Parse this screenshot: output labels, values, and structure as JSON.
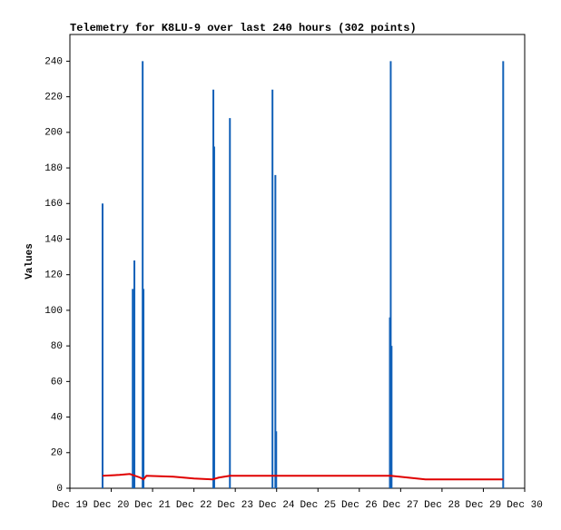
{
  "chart_data": {
    "type": "mixed",
    "title": "Telemetry for K8LU-9 over last 240 hours (302 points)",
    "y_label": "Values",
    "xlim": [
      19,
      30
    ],
    "xticks": [
      {
        "value": 19,
        "label": "Dec 19"
      },
      {
        "value": 20,
        "label": "Dec 20"
      },
      {
        "value": 21,
        "label": "Dec 21"
      },
      {
        "value": 22,
        "label": "Dec 22"
      },
      {
        "value": 23,
        "label": "Dec 23"
      },
      {
        "value": 24,
        "label": "Dec 24"
      },
      {
        "value": 25,
        "label": "Dec 25"
      },
      {
        "value": 26,
        "label": "Dec 26"
      },
      {
        "value": 27,
        "label": "Dec 27"
      },
      {
        "value": 28,
        "label": "Dec 28"
      },
      {
        "value": 29,
        "label": "Dec 29"
      },
      {
        "value": 30,
        "label": "Dec 30"
      }
    ],
    "ylim": [
      0,
      255
    ],
    "yticks": [
      0,
      20,
      40,
      60,
      80,
      100,
      120,
      140,
      160,
      180,
      200,
      220,
      240
    ],
    "series": [
      {
        "type": "impulse",
        "color": "#1060b8",
        "x": [
          19.79,
          20.52,
          20.54,
          20.56,
          20.76,
          20.78,
          22.47,
          22.49,
          22.87,
          23.9,
          23.97,
          23.99,
          26.74,
          26.76,
          26.78,
          29.48
        ],
        "values": [
          160,
          112,
          16,
          128,
          240,
          112,
          224,
          192,
          208,
          224,
          176,
          32,
          96,
          240,
          80,
          240
        ]
      },
      {
        "type": "line",
        "color": "#e00000",
        "x": [
          19.79,
          20.2,
          20.45,
          20.7,
          20.78,
          20.85,
          21.5,
          22,
          22.45,
          22.6,
          22.87,
          24,
          26.76,
          27.6,
          29.48
        ],
        "values": [
          7,
          7.5,
          8,
          6,
          5,
          7,
          6.5,
          5.5,
          5,
          6,
          7,
          7,
          7,
          5,
          5
        ]
      }
    ]
  }
}
